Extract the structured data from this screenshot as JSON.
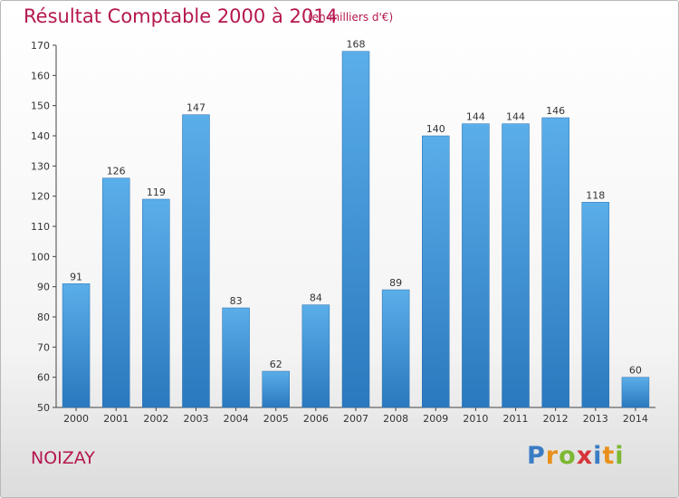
{
  "chart_data": {
    "type": "bar",
    "title": "Résultat Comptable 2000 à 2014",
    "subtitle": "(en milliers d'€)",
    "categories": [
      "2000",
      "2001",
      "2002",
      "2003",
      "2004",
      "2005",
      "2006",
      "2007",
      "2008",
      "2009",
      "2010",
      "2011",
      "2012",
      "2013",
      "2014"
    ],
    "values": [
      91,
      126,
      119,
      147,
      83,
      62,
      84,
      168,
      89,
      140,
      144,
      144,
      146,
      118,
      60
    ],
    "ylim": [
      50,
      170
    ],
    "yticks": [
      50,
      60,
      70,
      80,
      90,
      100,
      110,
      120,
      130,
      140,
      150,
      160,
      170
    ],
    "xlabel": "",
    "ylabel": "",
    "grid": false,
    "bar_color": "#3f8fd6"
  },
  "town": "NOIZAY",
  "logo": {
    "letters": [
      "P",
      "r",
      "o",
      "x",
      "i",
      "t",
      "i"
    ],
    "colors": [
      "#3a7cc4",
      "#e8901c",
      "#7cb832",
      "#d6343a",
      "#3a7cc4",
      "#e8901c",
      "#7cb832"
    ]
  }
}
